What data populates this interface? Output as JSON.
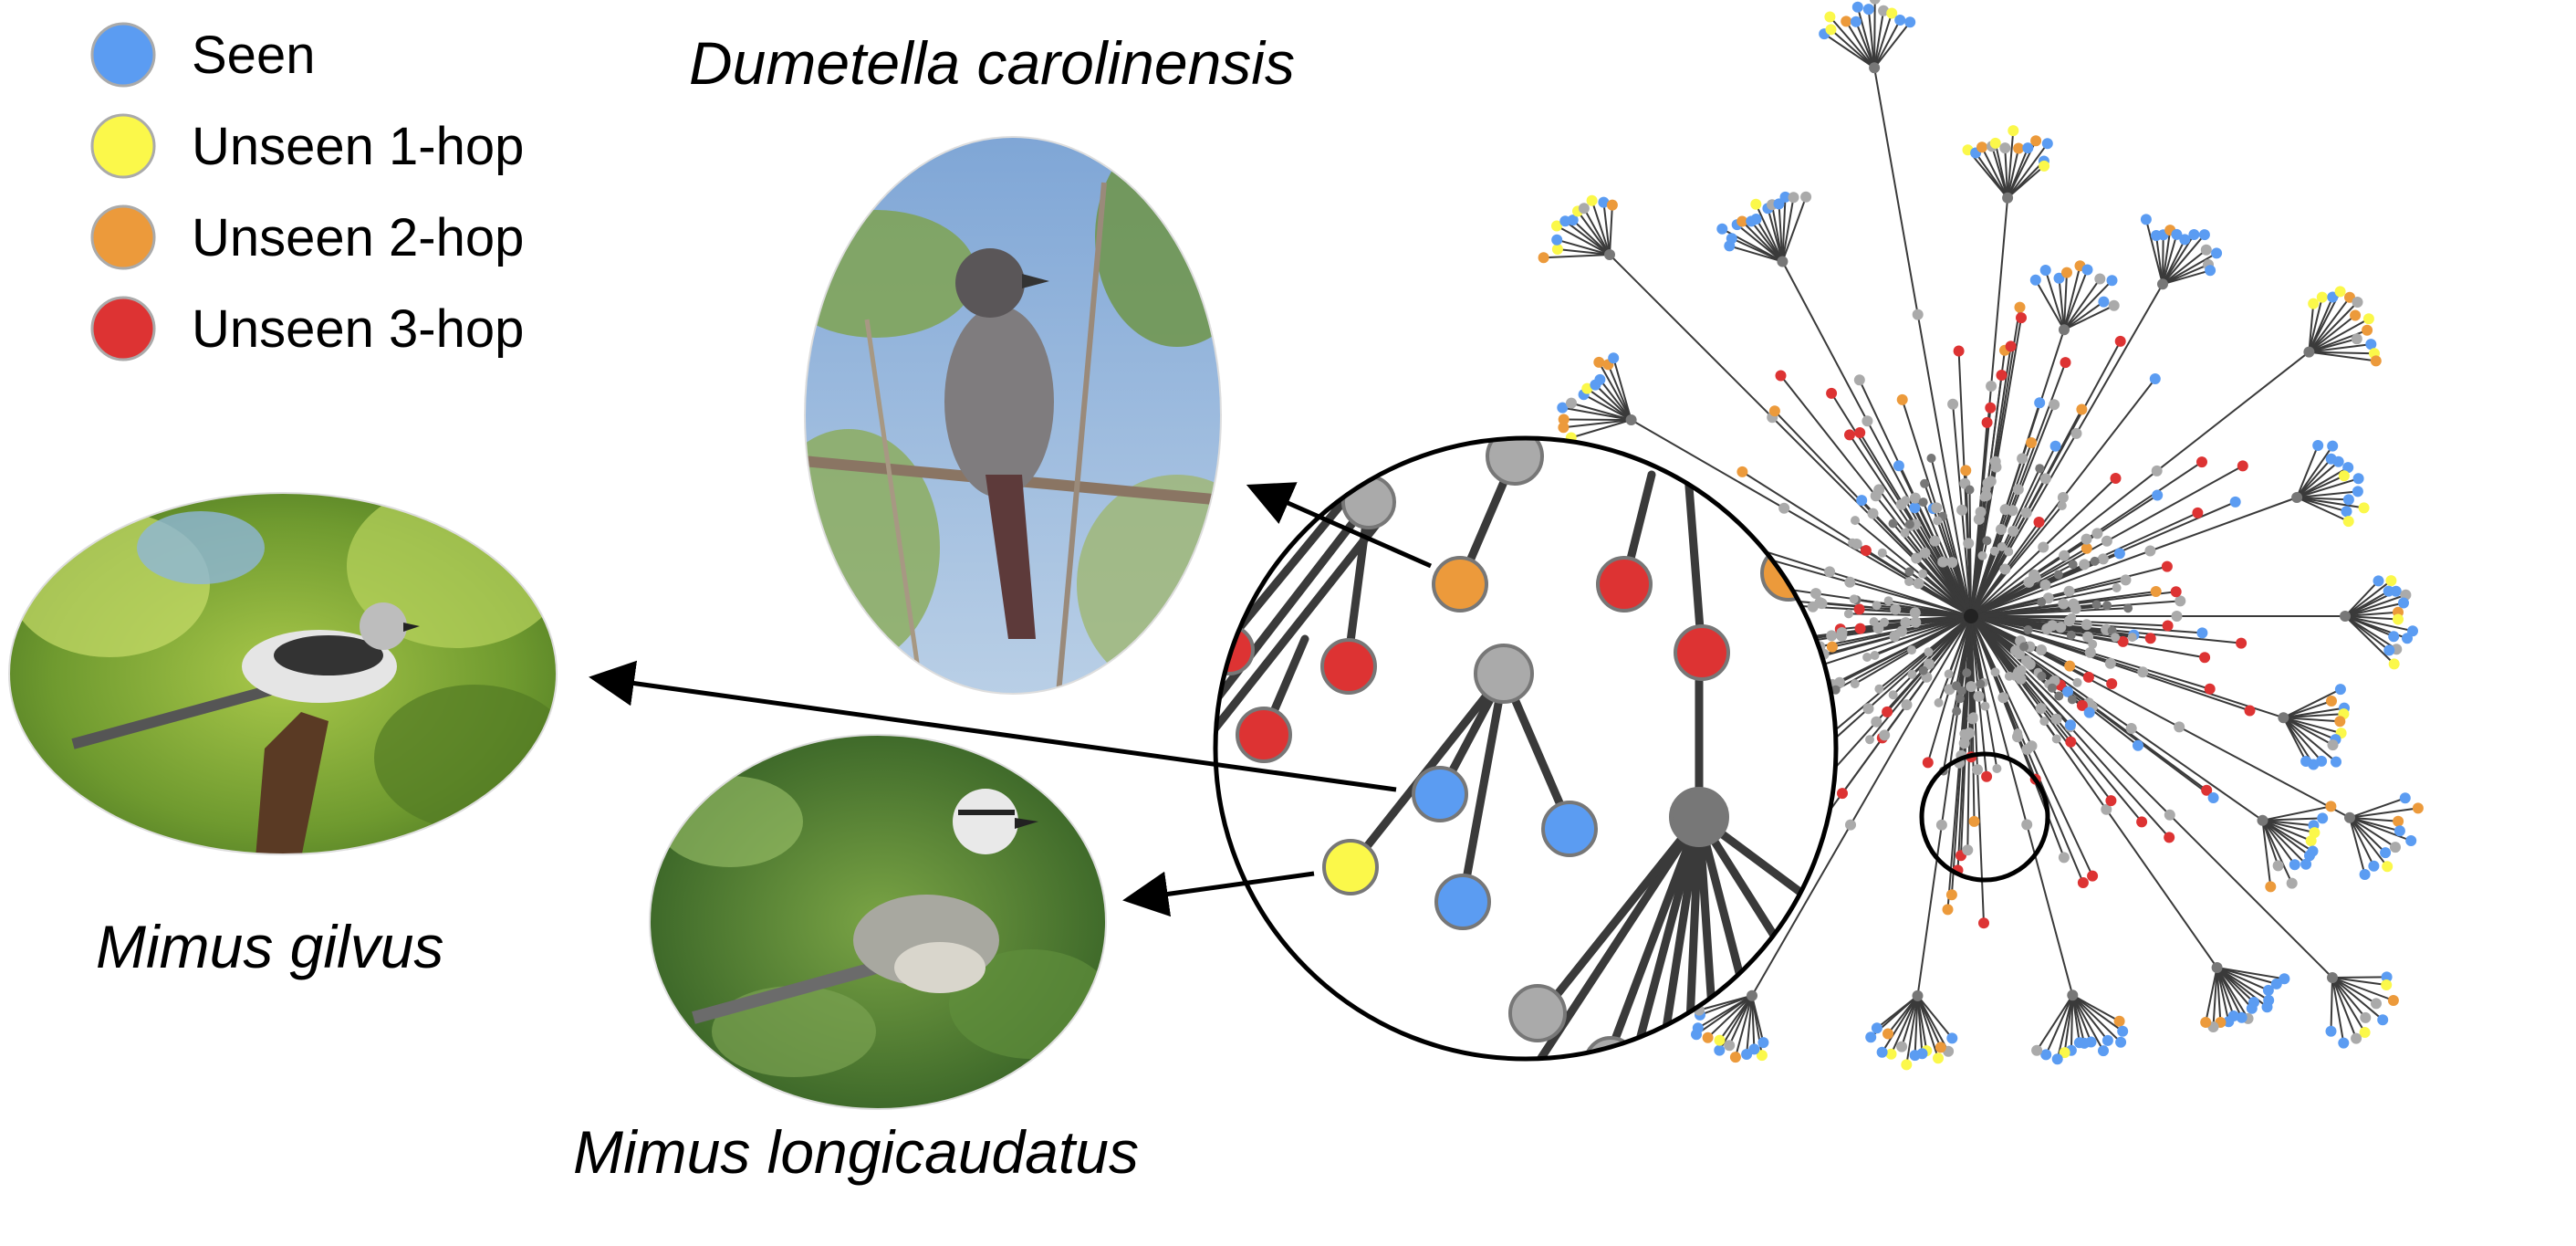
{
  "legend": {
    "items": [
      {
        "label": "Seen",
        "color": "#5b9cf2"
      },
      {
        "label": "Unseen 1-hop",
        "color": "#fbf84a"
      },
      {
        "label": "Unseen 2-hop",
        "color": "#ec9a3b"
      },
      {
        "label": "Unseen 3-hop",
        "color": "#dd3333"
      }
    ]
  },
  "species": {
    "dumetella": "Dumetella carolinensis",
    "gilvus": "Mimus gilvus",
    "longicaudatus": "Mimus longicaudatus"
  },
  "colors": {
    "seen": "#5b9cf2",
    "unseen_1hop": "#fbf84a",
    "unseen_2hop": "#ec9a3b",
    "unseen_3hop": "#dd3333",
    "internal_light": "#aaaaaa",
    "internal_dark": "#777777",
    "edge": "#3a3a3a"
  },
  "icons": {
    "photo_dumetella": "gray-catbird-photo",
    "photo_gilvus": "tropical-mockingbird-photo",
    "photo_longicaudatus": "long-tailed-mockingbird-photo"
  }
}
